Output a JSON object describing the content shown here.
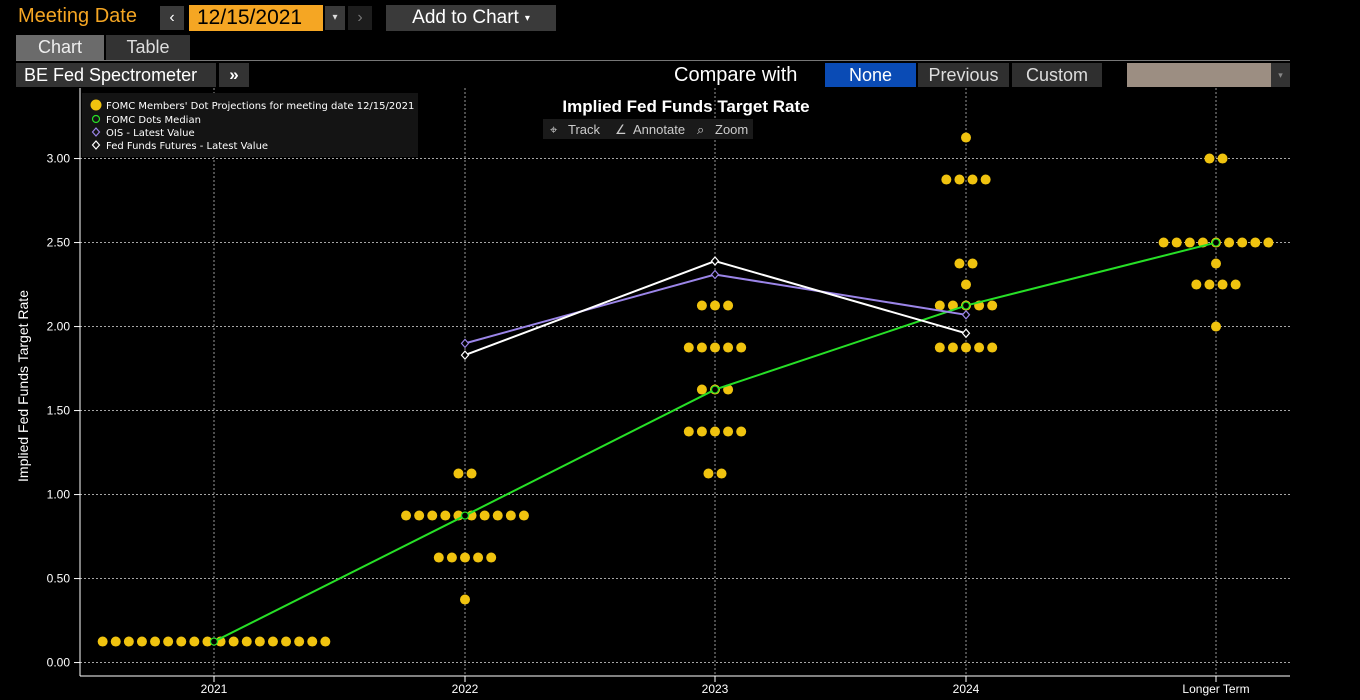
{
  "toolbar": {
    "meeting_date_label": "Meeting Date",
    "prev_icon": "‹",
    "date_value": "12/15/2021",
    "dropdown_icon": "▾",
    "next_icon": "›",
    "add_to_chart_label": "Add to Chart"
  },
  "tabs": [
    {
      "label": "Chart",
      "active": true
    },
    {
      "label": "Table",
      "active": false
    }
  ],
  "view": {
    "selector_label": "BE Fed Spectrometer",
    "more_icon": "»",
    "compare_label": "Compare with",
    "compare_options": [
      "None",
      "Previous",
      "Custom"
    ],
    "compare_selected": "None",
    "custom_color": "#9c8e82"
  },
  "controls": {
    "track": "Track",
    "annotate": "Annotate",
    "zoom": "Zoom"
  },
  "colors": {
    "dots": "#f0c30f",
    "median": "#27e027",
    "ois": "#9b85e8",
    "futures": "#ffffff",
    "accent": "#f5a623",
    "selected": "#0a4bb5"
  },
  "chart_data": {
    "type": "scatter",
    "title": "Implied Fed Funds Target Rate",
    "ylabel": "Implied Fed Funds Target Rate",
    "xlabel": "",
    "categories": [
      "2021",
      "2022",
      "2023",
      "2024",
      "Longer Term"
    ],
    "ylim": [
      -0.08,
      3.42
    ],
    "yticks": [
      0,
      0.5,
      1,
      1.5,
      2,
      2.5,
      3
    ],
    "yticklabels": [
      "0.00",
      "0.50",
      "1.00",
      "1.50",
      "2.00",
      "2.50",
      "3.00"
    ],
    "grid": true,
    "legend_position": "top-left",
    "legend": [
      {
        "label": "FOMC Members' Dot Projections for meeting date 12/15/2021",
        "marker": "dot"
      },
      {
        "label": "FOMC Dots Median",
        "marker": "circle"
      },
      {
        "label": "OIS - Latest Value",
        "marker": "diamond"
      },
      {
        "label": "Fed Funds Futures - Latest Value",
        "marker": "diamond"
      }
    ],
    "dot_projections": [
      {
        "category": "2021",
        "levels": [
          {
            "rate": 0.125,
            "count": 18
          }
        ]
      },
      {
        "category": "2022",
        "levels": [
          {
            "rate": 1.125,
            "count": 2
          },
          {
            "rate": 0.875,
            "count": 10
          },
          {
            "rate": 0.625,
            "count": 5
          },
          {
            "rate": 0.375,
            "count": 1
          }
        ]
      },
      {
        "category": "2023",
        "levels": [
          {
            "rate": 2.125,
            "count": 3
          },
          {
            "rate": 1.875,
            "count": 5
          },
          {
            "rate": 1.625,
            "count": 3
          },
          {
            "rate": 1.375,
            "count": 5
          },
          {
            "rate": 1.125,
            "count": 2
          }
        ]
      },
      {
        "category": "2024",
        "levels": [
          {
            "rate": 3.125,
            "count": 1
          },
          {
            "rate": 2.875,
            "count": 4
          },
          {
            "rate": 2.375,
            "count": 2
          },
          {
            "rate": 2.25,
            "count": 1
          },
          {
            "rate": 2.125,
            "count": 5
          },
          {
            "rate": 1.875,
            "count": 5
          }
        ]
      },
      {
        "category": "Longer Term",
        "levels": [
          {
            "rate": 3.0,
            "count": 2
          },
          {
            "rate": 2.5,
            "count": 9
          },
          {
            "rate": 2.375,
            "count": 1
          },
          {
            "rate": 2.25,
            "count": 4
          },
          {
            "rate": 2.0,
            "count": 1
          }
        ]
      }
    ],
    "series": [
      {
        "name": "FOMC Dots Median",
        "x": [
          "2021",
          "2022",
          "2023",
          "2024",
          "Longer Term"
        ],
        "values": [
          0.125,
          0.875,
          1.625,
          2.125,
          2.5
        ]
      },
      {
        "name": "OIS - Latest Value",
        "x": [
          "2022",
          "2023",
          "2024"
        ],
        "values": [
          1.9,
          2.31,
          2.07
        ]
      },
      {
        "name": "Fed Funds Futures - Latest Value",
        "x": [
          "2022",
          "2023",
          "2024"
        ],
        "values": [
          1.83,
          2.39,
          1.96
        ]
      }
    ]
  }
}
